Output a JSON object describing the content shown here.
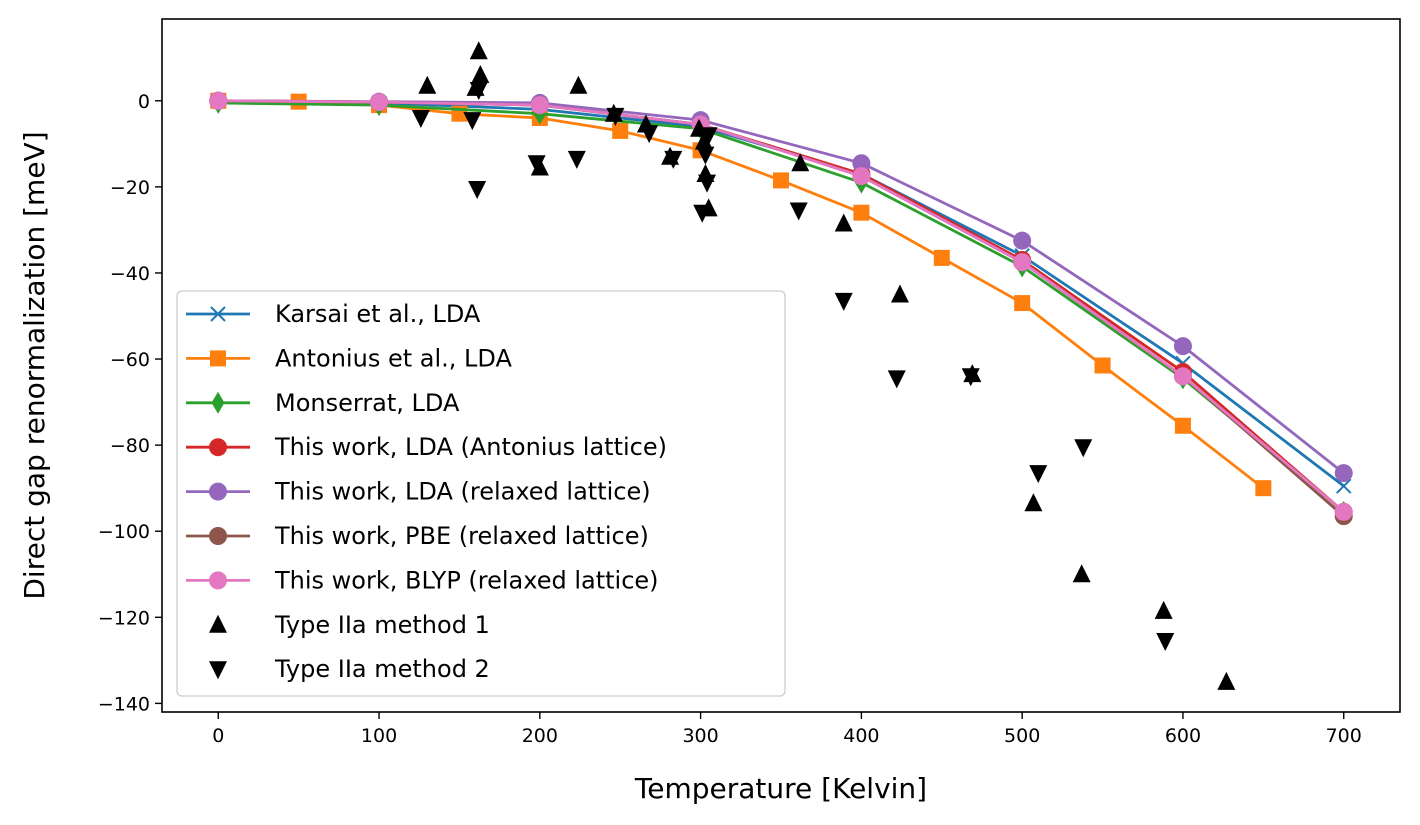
{
  "chart_data": {
    "type": "line",
    "xlabel": "Temperature [Kelvin]",
    "ylabel": "Direct gap renormalization [meV]",
    "xlim": [
      -35,
      735
    ],
    "ylim": [
      -142,
      19
    ],
    "xticks": [
      0,
      100,
      200,
      300,
      400,
      500,
      600,
      700
    ],
    "yticks": [
      -140,
      -120,
      -100,
      -80,
      -60,
      -40,
      -20,
      0
    ],
    "grid": false,
    "legend_position": "lower-left",
    "series": [
      {
        "name": "Karsai et al., LDA",
        "color": "#1f77b4",
        "marker": "x",
        "line": true,
        "x": [
          0,
          100,
          200,
          300,
          400,
          500,
          600,
          700
        ],
        "y": [
          0,
          -0.5,
          -2,
          -6,
          -17,
          -36,
          -61,
          -89.5
        ]
      },
      {
        "name": "Antonius et al., LDA",
        "color": "#ff7f0e",
        "marker": "square",
        "line": true,
        "x": [
          0,
          50,
          100,
          150,
          200,
          250,
          300,
          350,
          400,
          450,
          500,
          550,
          600,
          650
        ],
        "y": [
          0,
          -0.2,
          -1,
          -3,
          -4,
          -7,
          -11.5,
          -18.5,
          -26,
          -36.5,
          -47,
          -61.5,
          -75.5,
          -90
        ]
      },
      {
        "name": "Monserrat, LDA",
        "color": "#2ca02c",
        "marker": "diamond",
        "line": true,
        "x": [
          0,
          100,
          200,
          300,
          400,
          500,
          600,
          700
        ],
        "y": [
          -0.5,
          -1,
          -3,
          -6.5,
          -19,
          -38.5,
          -64.5,
          -95.5
        ]
      },
      {
        "name": "This work, LDA (Antonius lattice)",
        "color": "#d62728",
        "marker": "circle",
        "line": true,
        "x": [
          0,
          100,
          200,
          300,
          400,
          500,
          600,
          700
        ],
        "y": [
          0,
          -0.3,
          -1,
          -5.5,
          -17,
          -37,
          -63,
          -95.5
        ]
      },
      {
        "name": "This work, LDA (relaxed lattice)",
        "color": "#9467bd",
        "marker": "circle",
        "line": true,
        "x": [
          0,
          100,
          200,
          300,
          400,
          500,
          600,
          700
        ],
        "y": [
          0,
          -0.2,
          -0.5,
          -4.5,
          -14.5,
          -32.5,
          -57,
          -86.5
        ]
      },
      {
        "name": "This work, PBE (relaxed lattice)",
        "color": "#8c564b",
        "marker": "circle",
        "line": true,
        "x": [
          0,
          100,
          200,
          300,
          400,
          500,
          600,
          700
        ],
        "y": [
          0,
          -0.3,
          -1,
          -5.5,
          -17.5,
          -37.5,
          -64,
          -96.5
        ]
      },
      {
        "name": "This work, BLYP (relaxed lattice)",
        "color": "#e377c2",
        "marker": "circle",
        "line": true,
        "x": [
          0,
          100,
          200,
          300,
          400,
          500,
          600,
          700
        ],
        "y": [
          0,
          -0.3,
          -1,
          -5.5,
          -17.5,
          -37.5,
          -64,
          -95.5
        ]
      },
      {
        "name": "Type IIa method 1",
        "color": "#000000",
        "marker": "triangle-up",
        "line": false,
        "x": [
          130,
          160,
          162,
          163,
          200,
          224,
          246,
          266,
          281,
          299,
          302,
          303,
          305,
          362,
          389,
          424,
          469,
          507,
          537,
          588,
          627
        ],
        "y": [
          3.5,
          3,
          11.5,
          6,
          -15.5,
          3.5,
          -3,
          -5.5,
          -13,
          -6.5,
          -9.5,
          -17,
          -25,
          -14.5,
          -28.5,
          -45,
          -63.5,
          -93.5,
          -110,
          -118.5,
          -135
        ]
      },
      {
        "name": "Type IIa method 2",
        "color": "#000000",
        "marker": "triangle-down",
        "line": false,
        "x": [
          126,
          158,
          161,
          162,
          198,
          223,
          247,
          268,
          283,
          301,
          303,
          304,
          305,
          361,
          389,
          422,
          468,
          510,
          538,
          589
        ],
        "y": [
          -4,
          -4.5,
          -20.5,
          2.5,
          -14.5,
          -13.5,
          -3.5,
          -7.5,
          -13.5,
          -26,
          -12.5,
          -19,
          -8,
          -25.5,
          -46.5,
          -64.5,
          -64,
          -86.5,
          -80.5,
          -125.5
        ]
      }
    ]
  }
}
